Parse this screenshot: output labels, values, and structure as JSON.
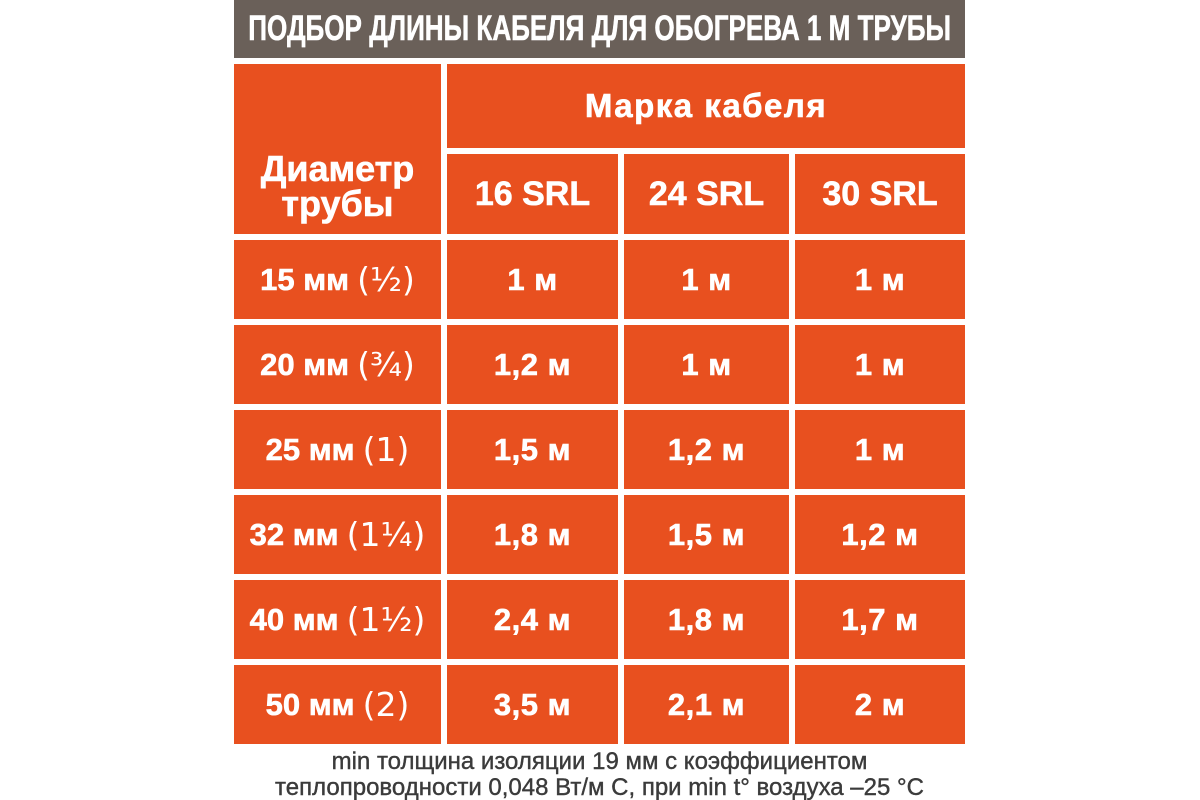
{
  "title": "ПОДБОР ДЛИНЫ КАБЕЛЯ ДЛЯ ОБОГРЕВА 1 М ТРУБЫ",
  "colors": {
    "accent_orange": "#e8501f",
    "title_bar_gray": "#6a6059",
    "text_white": "#ffffff",
    "note_text": "#3b3b3b",
    "background": "#ffffff"
  },
  "table": {
    "corner_header": "Диаметр\nтрубы",
    "brand_header": "Марка кабеля",
    "columns": [
      "16 SRL",
      "24 SRL",
      "30 SRL"
    ],
    "rows": [
      {
        "diameter": "15 мм",
        "diameter_inches": "(¹⁄₂)",
        "values": [
          "1 м",
          "1 м",
          "1 м"
        ]
      },
      {
        "diameter": "20 мм",
        "diameter_inches": "(³⁄₄)",
        "values": [
          "1,2 м",
          "1 м",
          "1 м"
        ]
      },
      {
        "diameter": "25 мм",
        "diameter_inches": "(1)",
        "values": [
          "1,5 м",
          "1,2 м",
          "1 м"
        ]
      },
      {
        "diameter": "32 мм",
        "diameter_inches": "(1¹⁄₄)",
        "values": [
          "1,8 м",
          "1,5 м",
          "1,2 м"
        ]
      },
      {
        "diameter": "40 мм",
        "diameter_inches": "(1¹⁄₂)",
        "values": [
          "2,4 м",
          "1,8 м",
          "1,7 м"
        ]
      },
      {
        "diameter": "50 мм",
        "diameter_inches": "(2)",
        "values": [
          "3,5 м",
          "2,1 м",
          "2 м"
        ]
      }
    ]
  },
  "footnote": {
    "line1": "min толщина изоляции 19 мм с коэффициентом",
    "line2": "теплопроводности 0,048 Вт/м С, при min t° воздуха –25 °C"
  },
  "chart_data": {
    "type": "table",
    "title": "ПОДБОР ДЛИНЫ КАБЕЛЯ ДЛЯ ОБОГРЕВА 1 М ТРУБЫ",
    "row_header": "Диаметр трубы",
    "column_group_header": "Марка кабеля",
    "columns": [
      "16 SRL",
      "24 SRL",
      "30 SRL"
    ],
    "rows": [
      "15 мм (1/2)",
      "20 мм (3/4)",
      "25 мм (1)",
      "32 мм (1 1/4)",
      "40 мм (1 1/2)",
      "50 мм (2)"
    ],
    "values_m": [
      [
        1,
        1,
        1
      ],
      [
        1.2,
        1,
        1
      ],
      [
        1.5,
        1.2,
        1
      ],
      [
        1.8,
        1.5,
        1.2
      ],
      [
        2.4,
        1.8,
        1.7
      ],
      [
        3.5,
        2.1,
        2
      ]
    ],
    "note": "min толщина изоляции 19 мм с коэффициентом теплопроводности 0,048 Вт/м С, при min t° воздуха –25 °C"
  }
}
